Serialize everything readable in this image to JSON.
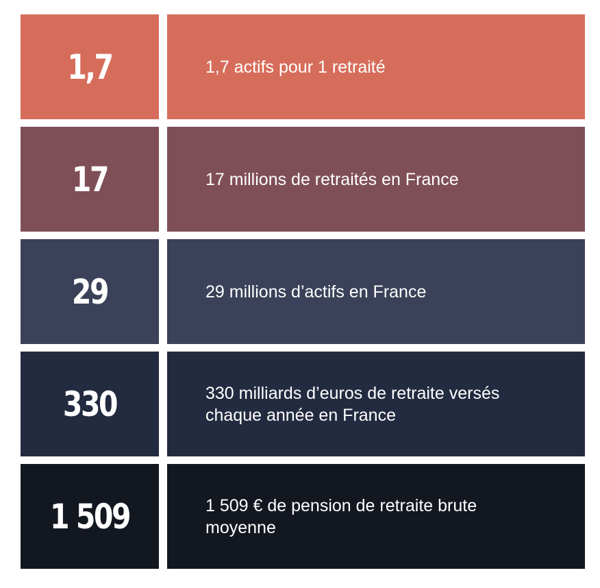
{
  "stats": [
    {
      "value": "1,7",
      "label": "1,7 actifs pour 1 retraité",
      "color": "#d66d5a"
    },
    {
      "value": "17",
      "label": "17 millions de retraités en France",
      "color": "#7f4f58"
    },
    {
      "value": "29",
      "label": "29 millions d’actifs en France",
      "color": "#3a4158"
    },
    {
      "value": "330",
      "label": "330 milliards d’euros de retraite versés chaque année en France",
      "color": "#232b40"
    },
    {
      "value": "1 509",
      "label": "1 509 € de pension de retraite brute moyenne",
      "color": "#131720"
    }
  ]
}
